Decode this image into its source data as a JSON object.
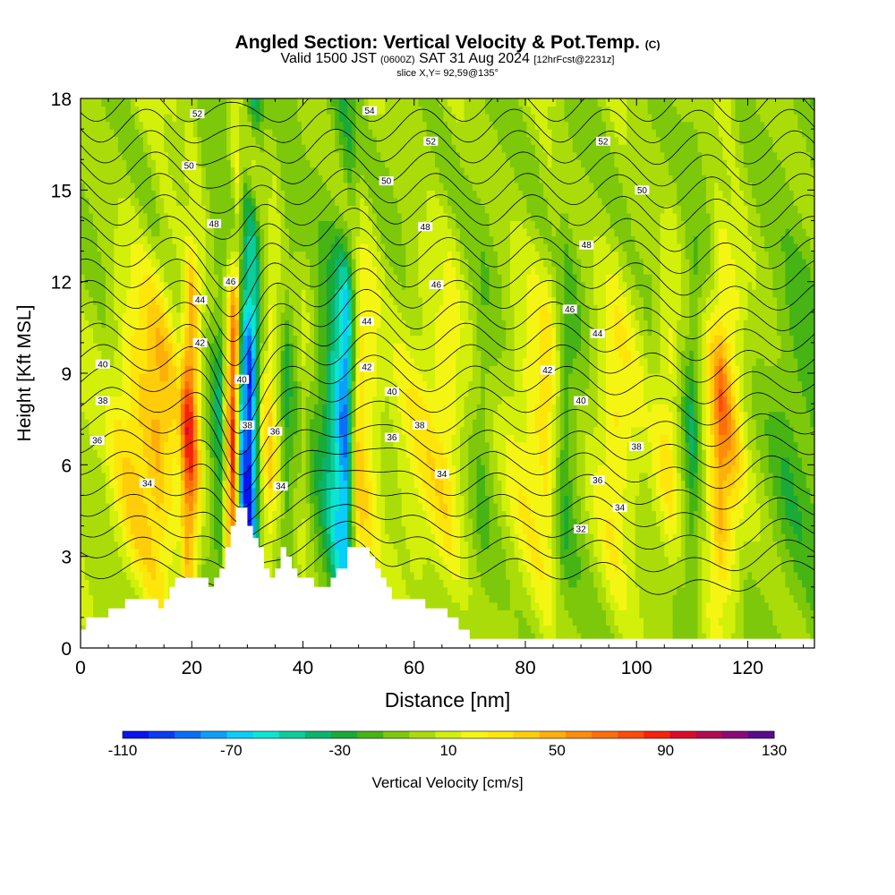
{
  "title": {
    "main": "Angled Section: Vertical Velocity & Pot.Temp.",
    "main_suffix": "(C)",
    "valid_prefix": "Valid 1500 JST",
    "valid_utc": "(0600Z)",
    "valid_date": "SAT 31 Aug 2024",
    "forecast": "[12hrFcst@2231z]",
    "slice": "slice X,Y= 92,59@135°"
  },
  "chart_data": {
    "type": "heatmap",
    "xlabel": "Distance [nm]",
    "ylabel": "Height [Kft MSL]",
    "xlim": [
      0,
      132
    ],
    "ylim": [
      0,
      18
    ],
    "x_ticks": [
      0,
      20,
      40,
      60,
      80,
      100,
      120
    ],
    "y_ticks": [
      0,
      3,
      6,
      9,
      12,
      15,
      18
    ],
    "grid": false,
    "colorbar": {
      "label": "Vertical Velocity [cm/s]",
      "tick_labels": [
        "-110",
        "-70",
        "-30",
        "10",
        "50",
        "90",
        "130"
      ],
      "min": -110,
      "max": 130,
      "step": 10,
      "colors": [
        "#0a14f0",
        "#0a3cf5",
        "#0a6ef8",
        "#0aa0fa",
        "#0acdfa",
        "#0ae6d2",
        "#0acd9b",
        "#0ab46e",
        "#19aa37",
        "#46b414",
        "#7dc80a",
        "#aadc0a",
        "#d2f00a",
        "#f5f514",
        "#ffe60a",
        "#ffcd0a",
        "#ffaf0a",
        "#ff8c0a",
        "#ff6e0a",
        "#ff4b0a",
        "#f5230a",
        "#dc0a28",
        "#b40a50",
        "#8c0a78",
        "#5a0a8c"
      ]
    },
    "series": [
      {
        "name": "Vertical Velocity (cm/s) — dominant bands",
        "x": [
          4,
          9,
          14,
          17.5,
          19.5,
          22,
          25,
          27.5,
          29,
          30.5,
          32.5,
          34,
          37,
          40,
          44,
          47.5,
          50,
          55,
          60,
          66,
          72,
          78,
          84,
          87,
          91,
          96,
          102,
          106,
          110,
          115,
          120,
          127
        ],
        "values": [
          10,
          40,
          55,
          30,
          95,
          10,
          -30,
          100,
          -80,
          -110,
          10,
          40,
          -20,
          10,
          -30,
          -90,
          45,
          10,
          25,
          35,
          -10,
          20,
          40,
          -20,
          5,
          35,
          10,
          30,
          -25,
          70,
          10,
          -15
        ]
      }
    ],
    "contours": {
      "variable": "Potential Temperature (C)",
      "levels": [
        32,
        33,
        34,
        35,
        36,
        37,
        38,
        39,
        40,
        41,
        42,
        43,
        44,
        45,
        46,
        47,
        48,
        49,
        50,
        51,
        52,
        53,
        54
      ],
      "labeled": [
        {
          "text": "54",
          "x": 52,
          "y": 17.6
        },
        {
          "text": "52",
          "x": 21,
          "y": 17.5
        },
        {
          "text": "52",
          "x": 63,
          "y": 16.6
        },
        {
          "text": "52",
          "x": 94,
          "y": 16.6
        },
        {
          "text": "50",
          "x": 19.5,
          "y": 15.8
        },
        {
          "text": "50",
          "x": 55,
          "y": 15.3
        },
        {
          "text": "50",
          "x": 101,
          "y": 15.0
        },
        {
          "text": "48",
          "x": 24,
          "y": 13.9
        },
        {
          "text": "48",
          "x": 62,
          "y": 13.8
        },
        {
          "text": "48",
          "x": 91,
          "y": 13.2
        },
        {
          "text": "46",
          "x": 27,
          "y": 12.0
        },
        {
          "text": "46",
          "x": 64,
          "y": 11.9
        },
        {
          "text": "46",
          "x": 88,
          "y": 11.1
        },
        {
          "text": "44",
          "x": 21.5,
          "y": 11.4
        },
        {
          "text": "44",
          "x": 51.5,
          "y": 10.7
        },
        {
          "text": "44",
          "x": 93,
          "y": 10.3
        },
        {
          "text": "42",
          "x": 21.5,
          "y": 10.0
        },
        {
          "text": "42",
          "x": 51.5,
          "y": 9.2
        },
        {
          "text": "42",
          "x": 84,
          "y": 9.1
        },
        {
          "text": "40",
          "x": 4,
          "y": 9.3
        },
        {
          "text": "40",
          "x": 29,
          "y": 8.8
        },
        {
          "text": "40",
          "x": 56,
          "y": 8.4
        },
        {
          "text": "40",
          "x": 90,
          "y": 8.1
        },
        {
          "text": "38",
          "x": 4,
          "y": 8.1
        },
        {
          "text": "38",
          "x": 30,
          "y": 7.3
        },
        {
          "text": "38",
          "x": 61,
          "y": 7.3
        },
        {
          "text": "38",
          "x": 100,
          "y": 6.6
        },
        {
          "text": "36",
          "x": 3,
          "y": 6.8
        },
        {
          "text": "36",
          "x": 35,
          "y": 7.1
        },
        {
          "text": "36",
          "x": 56,
          "y": 6.9
        },
        {
          "text": "36",
          "x": 93,
          "y": 5.5
        },
        {
          "text": "34",
          "x": 12,
          "y": 5.4
        },
        {
          "text": "34",
          "x": 36,
          "y": 5.3
        },
        {
          "text": "34",
          "x": 65,
          "y": 5.7
        },
        {
          "text": "34",
          "x": 97,
          "y": 4.6
        },
        {
          "text": "32",
          "x": 90,
          "y": 3.9
        }
      ]
    },
    "terrain": {
      "x": [
        0,
        1,
        2,
        5,
        8,
        12,
        14,
        15,
        16,
        17,
        18,
        22,
        23,
        24,
        25,
        26,
        27,
        28,
        29,
        30,
        31,
        32,
        33,
        34,
        35,
        36,
        37,
        38,
        39,
        40,
        42,
        43,
        44,
        45,
        46,
        48,
        49,
        50,
        52,
        53,
        54,
        55,
        56,
        57,
        58,
        60,
        62,
        64,
        66,
        68,
        70,
        132
      ],
      "y": [
        0.6,
        1.0,
        1.0,
        1.3,
        1.6,
        1.6,
        1.3,
        1.6,
        2.0,
        2.3,
        2.3,
        2.3,
        2.0,
        2.3,
        2.6,
        3.3,
        4.0,
        4.6,
        4.6,
        4.0,
        3.6,
        3.3,
        2.6,
        2.3,
        2.6,
        3.3,
        3.0,
        2.6,
        2.3,
        2.3,
        2.0,
        2.0,
        2.0,
        2.3,
        2.6,
        3.3,
        3.3,
        3.3,
        3.0,
        2.6,
        2.3,
        2.0,
        1.6,
        1.6,
        1.6,
        1.6,
        1.3,
        1.3,
        1.0,
        0.6,
        0.3,
        0.3
      ]
    }
  }
}
